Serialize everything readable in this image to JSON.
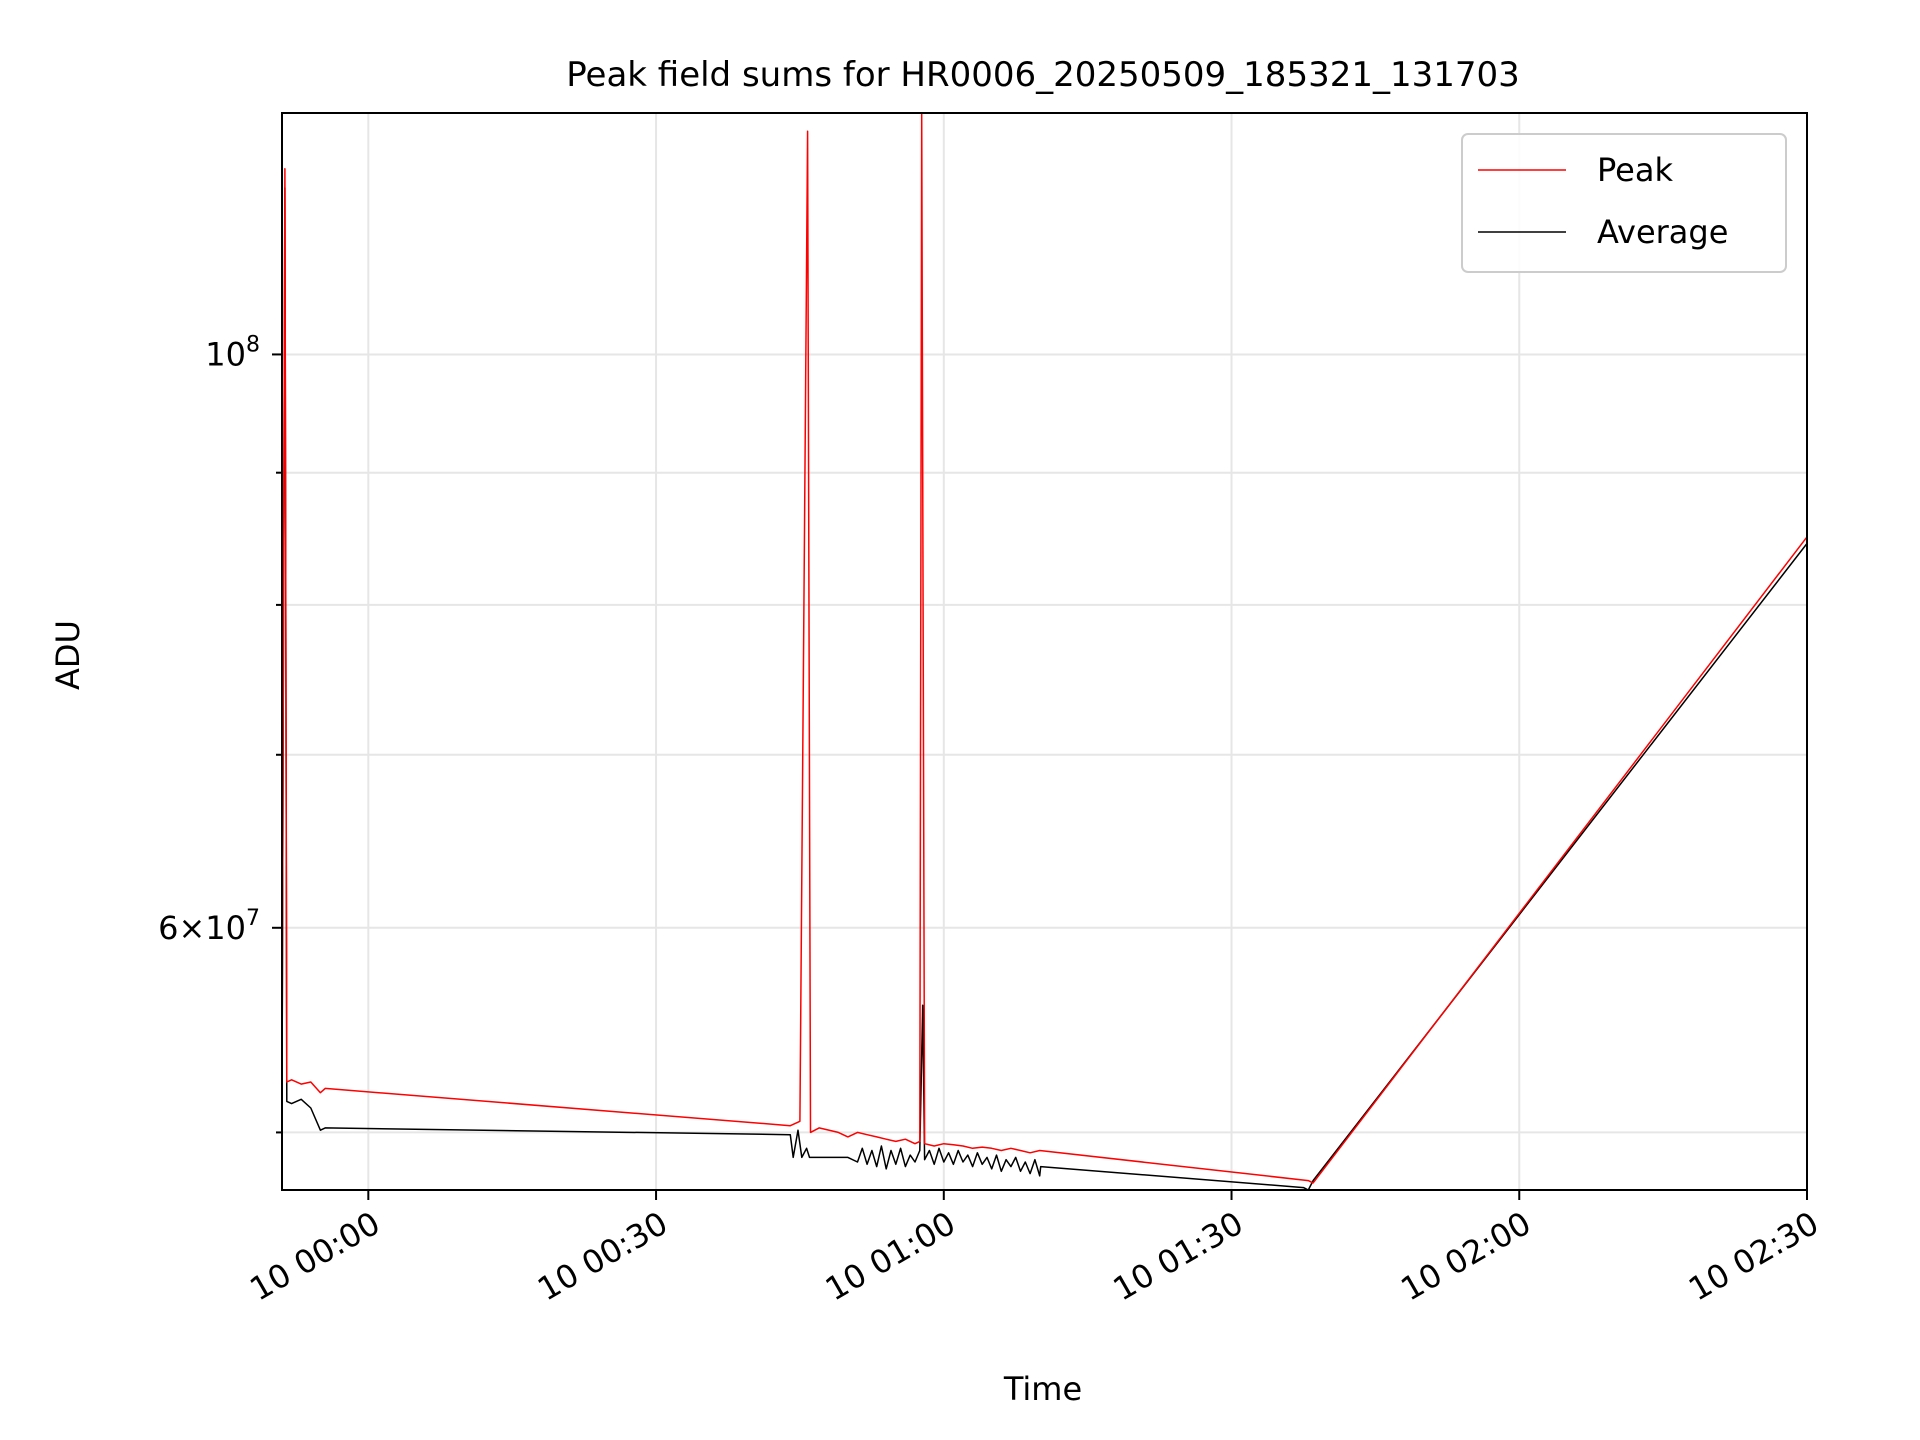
{
  "chart_data": {
    "type": "line",
    "title": "Peak field sums for HR0006_20250509_185321_131703",
    "xlabel": "Time",
    "ylabel": "ADU",
    "x_axis_type": "datetime",
    "x_ticks": [
      "10 00:00",
      "10 00:30",
      "10 01:00",
      "10 01:30",
      "10 02:00",
      "10 02:30"
    ],
    "xlim": [
      "09 23:51:00",
      "10 02:30:00"
    ],
    "y_scale": "log",
    "ylim": [
      47500000,
      124000000
    ],
    "y_ticks_major": [
      {
        "value": 100000000,
        "label": "10^8"
      },
      {
        "value": 60000000,
        "label": "6×10^7"
      }
    ],
    "y_ticks_minor": [
      50000000,
      70000000,
      80000000,
      90000000
    ],
    "grid": true,
    "legend_position": "top-right",
    "colors": {
      "Peak": "#ff0000",
      "Average": "#000000"
    },
    "series": [
      {
        "name": "Peak",
        "x": [
          "09 23:51:00",
          "09 23:51:18",
          "09 23:51:30",
          "09 23:52:00",
          "09 23:53:00",
          "09 23:54:00",
          "09 23:55:00",
          "09 23:55:30",
          "10 00:44:00",
          "10 00:45:00",
          "10 00:45:48",
          "10 00:46:06",
          "10 00:47:00",
          "10 00:49:00",
          "10 00:50:00",
          "10 00:51:00",
          "10 00:52:00",
          "10 00:53:00",
          "10 00:54:00",
          "10 00:55:00",
          "10 00:56:00",
          "10 00:57:00",
          "10 00:57:30",
          "10 00:57:42",
          "10 00:58:00",
          "10 00:59:00",
          "10 01:00:00",
          "10 01:01:00",
          "10 01:02:00",
          "10 01:03:00",
          "10 01:04:00",
          "10 01:05:00",
          "10 01:06:00",
          "10 01:07:00",
          "10 01:08:00",
          "10 01:09:00",
          "10 01:10:00",
          "10 01:38:00",
          "10 01:38:30",
          "10 02:30:00"
        ],
        "y": [
          51300000,
          118000000,
          52300000,
          52400000,
          52200000,
          52300000,
          51800000,
          52000000,
          50300000,
          50500000,
          122000000,
          50000000,
          50200000,
          50000000,
          49800000,
          50000000,
          49900000,
          49800000,
          49700000,
          49600000,
          49700000,
          49500000,
          49600000,
          124000000,
          49500000,
          49400000,
          49500000,
          49450000,
          49400000,
          49300000,
          49350000,
          49300000,
          49200000,
          49300000,
          49200000,
          49100000,
          49200000,
          47900000,
          47800000,
          85000000
        ]
      },
      {
        "name": "Average",
        "x": [
          "09 23:51:00",
          "09 23:51:18",
          "09 23:51:30",
          "09 23:52:00",
          "09 23:53:00",
          "09 23:54:00",
          "09 23:55:00",
          "09 23:55:30",
          "10 00:44:00",
          "10 00:44:18",
          "10 00:44:48",
          "10 00:45:12",
          "10 00:45:42",
          "10 00:46:00",
          "10 00:50:00",
          "10 00:51:00",
          "10 00:51:30",
          "10 00:52:00",
          "10 00:52:30",
          "10 00:53:00",
          "10 00:53:30",
          "10 00:54:00",
          "10 00:54:30",
          "10 00:55:00",
          "10 00:55:30",
          "10 00:56:00",
          "10 00:56:30",
          "10 00:57:00",
          "10 00:57:30",
          "10 00:57:48",
          "10 00:58:00",
          "10 00:58:30",
          "10 00:59:00",
          "10 00:59:30",
          "10 01:00:00",
          "10 01:00:30",
          "10 01:01:00",
          "10 01:01:30",
          "10 01:02:00",
          "10 01:02:30",
          "10 01:03:00",
          "10 01:03:30",
          "10 01:04:00",
          "10 01:04:30",
          "10 01:05:00",
          "10 01:05:30",
          "10 01:06:00",
          "10 01:06:30",
          "10 01:07:00",
          "10 01:07:30",
          "10 01:08:00",
          "10 01:08:30",
          "10 01:09:00",
          "10 01:09:30",
          "10 01:10:00",
          "10 01:10:06",
          "10 01:37:30",
          "10 01:38:00",
          "10 01:38:30",
          "10 02:30:00"
        ],
        "y": [
          51500000,
          116000000,
          51400000,
          51300000,
          51500000,
          51100000,
          50100000,
          50200000,
          49900000,
          48900000,
          50100000,
          48900000,
          49300000,
          48900000,
          48900000,
          48700000,
          49300000,
          48600000,
          49200000,
          48500000,
          49400000,
          48400000,
          49200000,
          48600000,
          49300000,
          48500000,
          49000000,
          48700000,
          49200000,
          56000000,
          48800000,
          49200000,
          48600000,
          49300000,
          48700000,
          49100000,
          48600000,
          49200000,
          48700000,
          49000000,
          48500000,
          49100000,
          48600000,
          48900000,
          48400000,
          49000000,
          48300000,
          48800000,
          48500000,
          48900000,
          48300000,
          48700000,
          48200000,
          48800000,
          48100000,
          48500000,
          47600000,
          47500000,
          47900000,
          84500000
        ]
      }
    ]
  }
}
